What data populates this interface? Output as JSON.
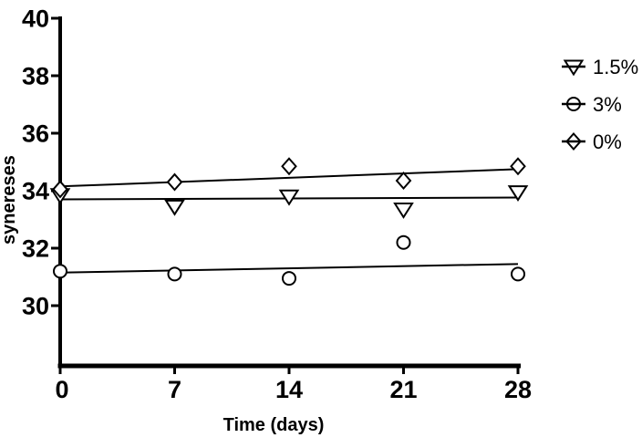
{
  "chart_data": {
    "type": "scatter",
    "title": "",
    "xlabel": "Time (days)",
    "ylabel": "synereses",
    "x": [
      0,
      7,
      14,
      21,
      28
    ],
    "xticks": [
      0,
      7,
      14,
      21,
      28
    ],
    "yticks": [
      40,
      38,
      36,
      34,
      32,
      30
    ],
    "xlim": [
      0,
      28
    ],
    "ylim": [
      27.9,
      40
    ],
    "grid": false,
    "legend_position": "right",
    "series": [
      {
        "name": "1.5%",
        "marker": "triangle-down",
        "values": [
          33.85,
          33.45,
          33.8,
          33.35,
          33.95
        ],
        "trend": {
          "x": [
            0,
            28
          ],
          "y": [
            33.7,
            33.76
          ]
        }
      },
      {
        "name": "3%",
        "marker": "circle",
        "values": [
          31.2,
          31.1,
          30.95,
          32.2,
          31.1
        ],
        "trend": {
          "x": [
            0,
            28
          ],
          "y": [
            31.15,
            31.45
          ]
        }
      },
      {
        "name": "0%",
        "marker": "diamond",
        "values": [
          34.05,
          34.3,
          34.85,
          34.35,
          34.85
        ],
        "trend": {
          "x": [
            0,
            28
          ],
          "y": [
            34.15,
            34.75
          ]
        }
      }
    ],
    "colors": {
      "foreground": "#000000",
      "background": "#ffffff"
    }
  }
}
